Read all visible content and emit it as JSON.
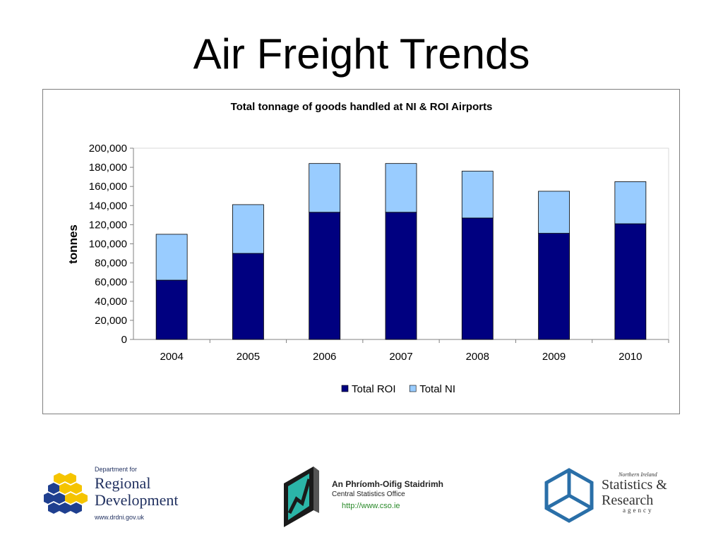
{
  "slide": {
    "title": "Air Freight Trends"
  },
  "chart_data": {
    "type": "bar",
    "stacked": true,
    "title": "Total tonnage of goods handled at NI & ROI Airports",
    "xlabel": "",
    "ylabel": "tonnes",
    "categories": [
      "2004",
      "2005",
      "2006",
      "2007",
      "2008",
      "2009",
      "2010"
    ],
    "series": [
      {
        "name": "Total ROI",
        "values": [
          62000,
          90000,
          133000,
          133000,
          127000,
          111000,
          121000
        ],
        "color": "#000080"
      },
      {
        "name": "Total NI",
        "values": [
          48000,
          51000,
          51000,
          51000,
          49000,
          44000,
          44000
        ],
        "color": "#99CCFF"
      }
    ],
    "ylim": [
      0,
      200000
    ],
    "yticks": [
      "0",
      "20,000",
      "40,000",
      "60,000",
      "80,000",
      "100,000",
      "120,000",
      "140,000",
      "160,000",
      "180,000",
      "200,000"
    ],
    "grid": false,
    "legend_position": "bottom"
  },
  "logos": {
    "drd": {
      "line1": "Department for",
      "line2": "Regional",
      "line3": "Development",
      "url": "www.drdni.gov.uk"
    },
    "cso": {
      "name_irish": "An Phríomh-Oifig Staidrimh",
      "name_english": "Central Statistics Office",
      "url": "http://www.cso.ie",
      "mark": "CSO"
    },
    "nisra": {
      "line1": "Northern Ireland",
      "line2": "Statistics &",
      "line3": "Research",
      "line4": "agency"
    }
  }
}
